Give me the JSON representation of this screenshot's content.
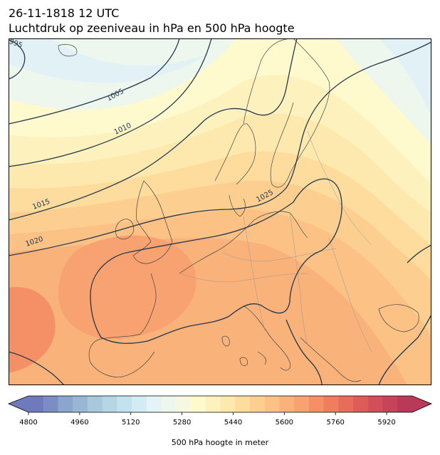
{
  "header": {
    "datetime": "26-11-1818 12 UTC",
    "subtitle": "Luchtdruk op zeeniveau in hPa en 500 hPa hoogte"
  },
  "map": {
    "region": "Europe",
    "fill_variable": "500 hPa hoogte",
    "contour_variable": "Luchtdruk op zeeniveau",
    "isobar_color": "#23374d",
    "isobar_labels": [
      "995",
      "1005",
      "1010",
      "1015",
      "1020",
      "1025"
    ]
  },
  "colorbar": {
    "label": "500 hPa hoogte in meter",
    "min": 4800,
    "max": 5960,
    "step": 40,
    "ticks": [
      "4800",
      "4960",
      "5120",
      "5280",
      "5440",
      "5600",
      "5760",
      "5920"
    ],
    "extend": "both",
    "colors": [
      "#6f7abd",
      "#7c8dc4",
      "#8ba6cc",
      "#99b7d5",
      "#a8c8dd",
      "#b5d6e5",
      "#c4e1ee",
      "#d3ebf3",
      "#e3f3f6",
      "#eef7ee",
      "#f6f9e0",
      "#fefacd",
      "#fdf2be",
      "#fde8ae",
      "#fddc9e",
      "#fccf90",
      "#fbc185",
      "#f9b27a",
      "#f7a270",
      "#f59066",
      "#f07e5e",
      "#e86c5a",
      "#de5c58",
      "#d24e58",
      "#c74458",
      "#b83a58"
    ]
  }
}
